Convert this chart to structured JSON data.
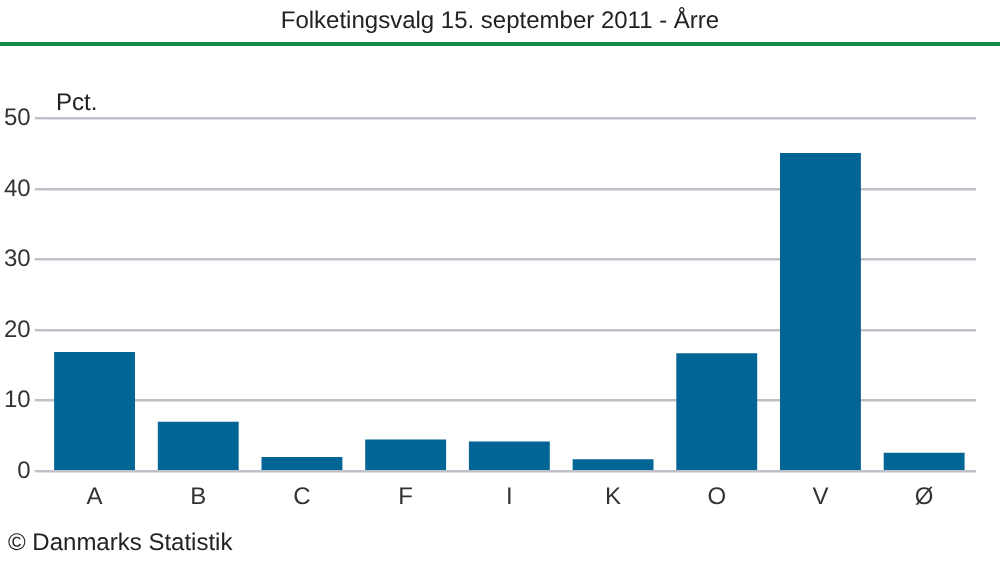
{
  "chart_data": {
    "type": "bar",
    "title": "Folketingsvalg 15. september 2011 - Årre",
    "ylabel": "Pct.",
    "categories": [
      "A",
      "B",
      "C",
      "F",
      "I",
      "K",
      "O",
      "V",
      "Ø"
    ],
    "values": [
      16.9,
      7.0,
      2.0,
      4.5,
      4.2,
      1.7,
      16.7,
      45.1,
      2.6
    ],
    "color": "#036595",
    "ylim": [
      0,
      50
    ],
    "yticks": [
      0,
      10,
      20,
      30,
      40,
      50
    ],
    "grid": "y",
    "legend": false,
    "annotations": [
      "© Danmarks Statistik"
    ]
  }
}
